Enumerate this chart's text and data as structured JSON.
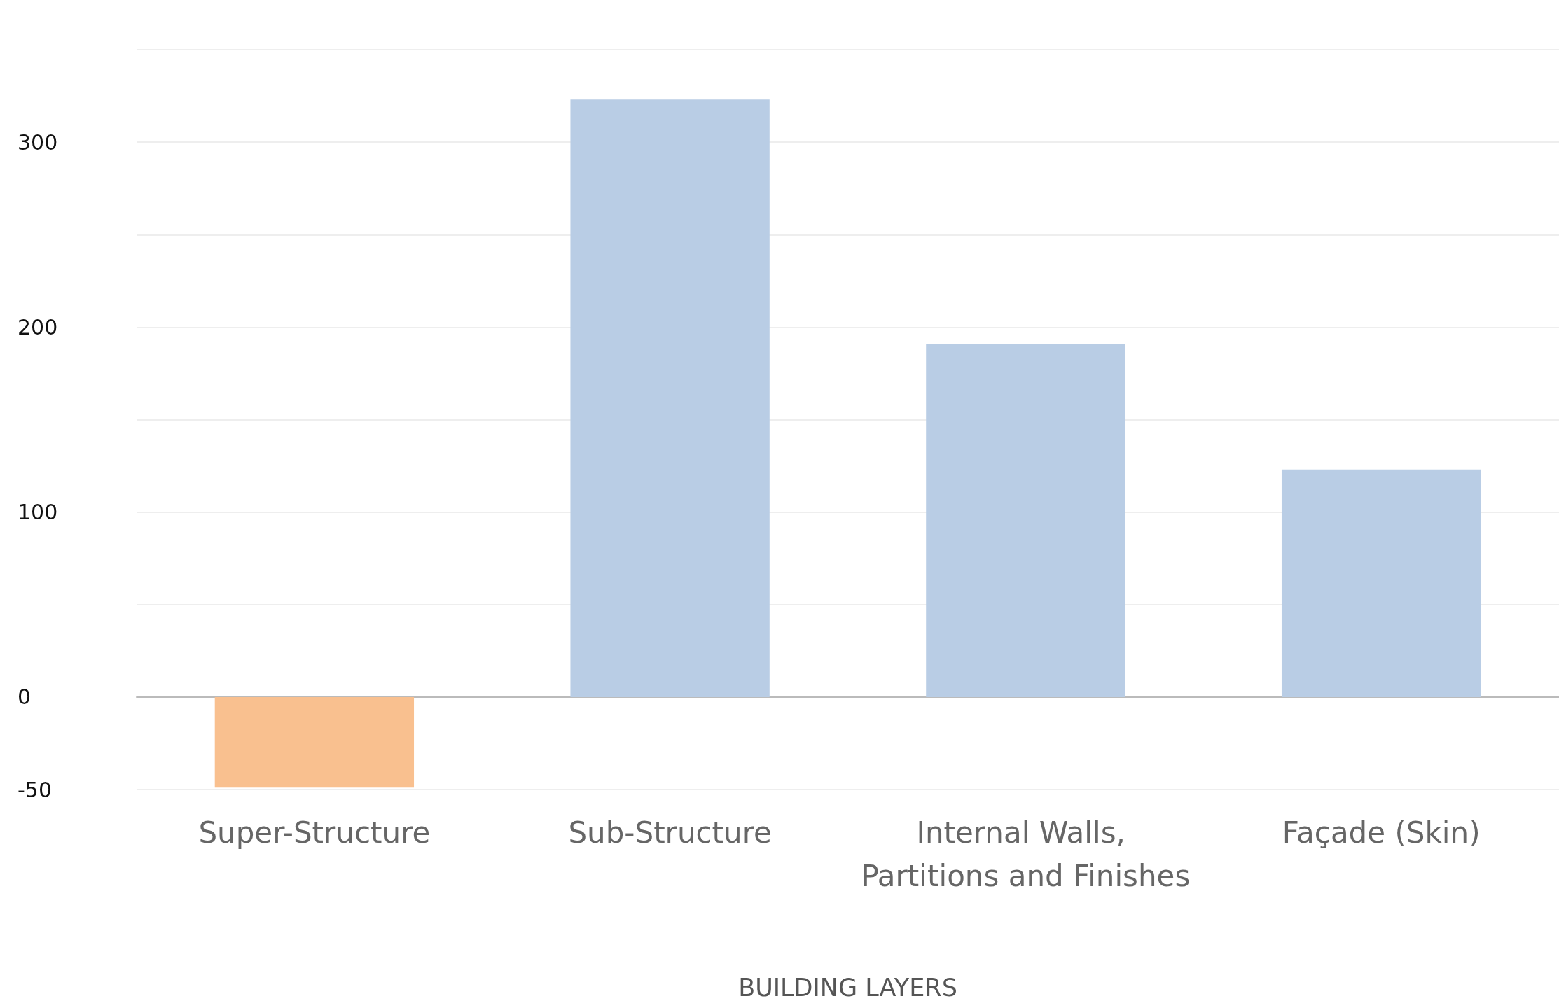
{
  "chart_data": {
    "type": "bar",
    "xlabel": "BUILDING LAYERS",
    "categories": [
      "Super-Structure",
      "Sub-Structure",
      "Internal Walls, Partitions and Finishes",
      "Façade (Skin)"
    ],
    "values": [
      -49,
      323,
      191,
      123
    ],
    "colors": [
      "#f9c08f",
      "#b9cde5",
      "#b9cde5",
      "#b9cde5"
    ],
    "ylim": [
      -50,
      350
    ],
    "yticks": [
      -50,
      0,
      {
        "value": 50,
        "label": null
      },
      100,
      {
        "value": 150,
        "label": null
      },
      200,
      {
        "value": 250,
        "label": null
      },
      300,
      {
        "value": 350,
        "label": null
      }
    ],
    "grid": "y"
  }
}
